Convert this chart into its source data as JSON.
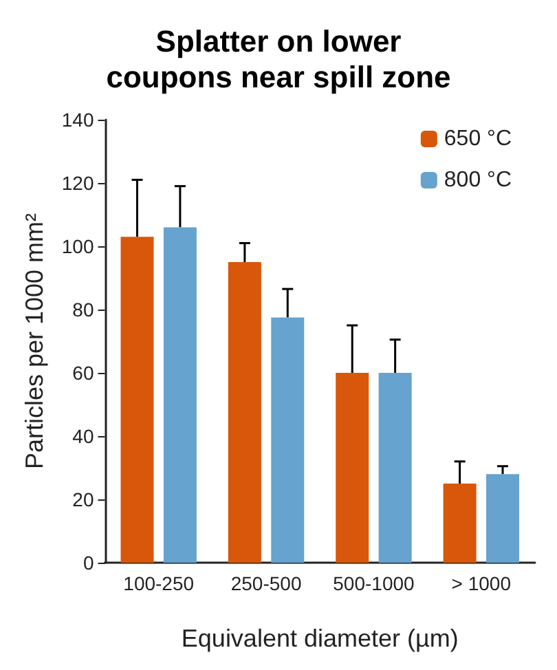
{
  "chart_data": {
    "type": "bar",
    "title": "Splatter on lower\ncoupons near spill zone",
    "xlabel": "Equivalent diameter (µm)",
    "ylabel": "Particles per 1000 mm²",
    "categories": [
      "100-250",
      "250-500",
      "500-1000",
      "> 1000"
    ],
    "series": [
      {
        "name": "650 °C",
        "color": "#d9570b",
        "values": [
          103,
          95,
          60,
          25
        ],
        "errors": [
          [
            103,
            121
          ],
          [
            95,
            101
          ],
          [
            60,
            75
          ],
          [
            25,
            32
          ]
        ]
      },
      {
        "name": "800 °C",
        "color": "#66a3cf",
        "values": [
          106,
          77.5,
          60,
          28
        ],
        "errors": [
          [
            106,
            119
          ],
          [
            77.5,
            86.5
          ],
          [
            60,
            70.5
          ],
          [
            28,
            30.5
          ]
        ]
      }
    ],
    "ylim": [
      0,
      140
    ],
    "yticks": [
      0,
      20,
      40,
      60,
      80,
      100,
      120,
      140
    ],
    "grid": false,
    "legend": "top right"
  }
}
